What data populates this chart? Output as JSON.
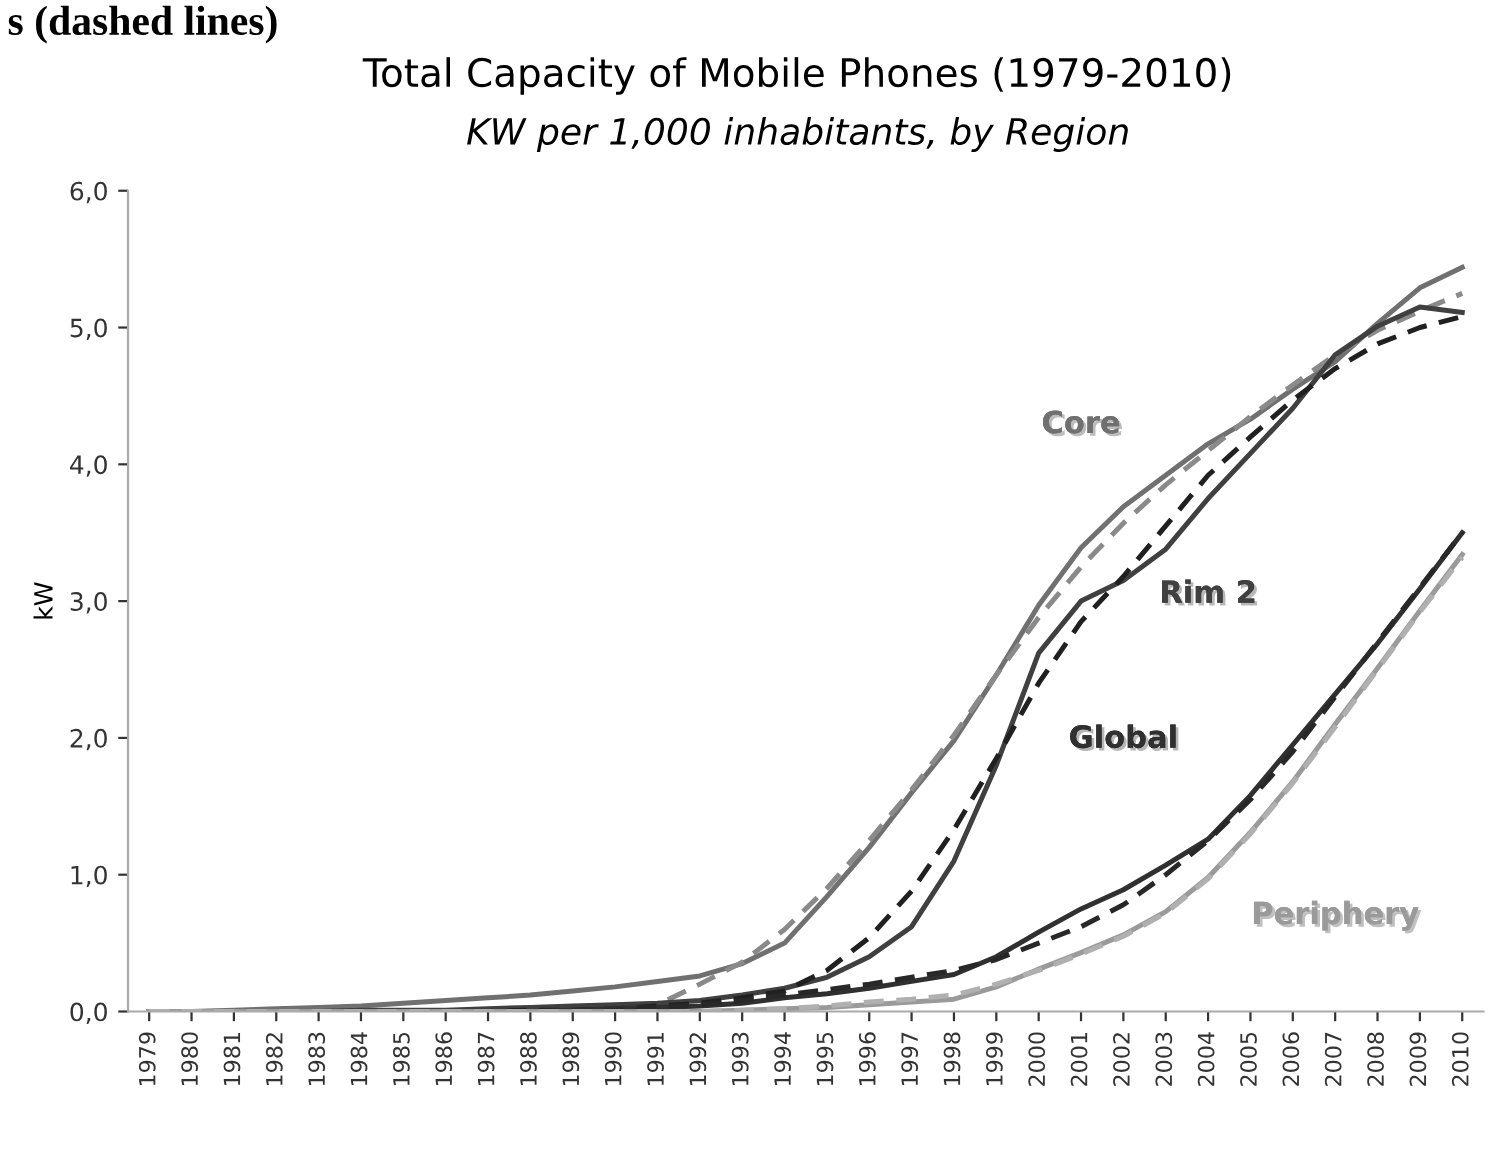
{
  "chart_data": {
    "type": "line",
    "title": "Total Capacity of Mobile Phones (1979-2010)",
    "subtitle": "KW per 1,000 inhabitants, by Region",
    "ylabel": "kW",
    "annotations": [
      "s (dashed lines)"
    ],
    "categories": [
      "1979",
      "1980",
      "1981",
      "1982",
      "1983",
      "1984",
      "1985",
      "1986",
      "1987",
      "1988",
      "1989",
      "1990",
      "1991",
      "1992",
      "1993",
      "1994",
      "1995",
      "1996",
      "1997",
      "1998",
      "1999",
      "2000",
      "2001",
      "2002",
      "2003",
      "2004",
      "2005",
      "2006",
      "2007",
      "2008",
      "2009",
      "2010"
    ],
    "ylim": [
      0,
      6
    ],
    "yticks": [
      {
        "value": 0,
        "label": "0,0"
      },
      {
        "value": 1,
        "label": "1,0"
      },
      {
        "value": 2,
        "label": "2,0"
      },
      {
        "value": 3,
        "label": "3,0"
      },
      {
        "value": 4,
        "label": "4,0"
      },
      {
        "value": 5,
        "label": "5,0"
      },
      {
        "value": 6,
        "label": "6,0"
      }
    ],
    "grid": false,
    "marker": "none",
    "series": [
      {
        "name": "Core",
        "color": "#707070",
        "line_style": "solid",
        "values": [
          0,
          0,
          0.01,
          0.02,
          0.03,
          0.04,
          0.06,
          0.08,
          0.1,
          0.12,
          0.15,
          0.18,
          0.22,
          0.26,
          0.35,
          0.5,
          0.84,
          1.2,
          1.6,
          1.98,
          2.46,
          2.97,
          3.39,
          3.69,
          3.92,
          4.15,
          4.33,
          4.55,
          4.75,
          5.03,
          5.29,
          5.44
        ]
      },
      {
        "color": "#8a8a8a",
        "line_style": "dashed",
        "values": [
          0,
          0,
          0,
          0,
          0,
          0,
          0,
          0,
          0,
          0,
          0.01,
          0.02,
          0.05,
          0.2,
          0.36,
          0.6,
          0.9,
          1.25,
          1.62,
          2.02,
          2.46,
          2.88,
          3.25,
          3.57,
          3.85,
          4.1,
          4.35,
          4.58,
          4.8,
          4.98,
          5.12,
          5.25
        ]
      },
      {
        "name": "Rim 2",
        "color": "#404040",
        "line_style": "solid",
        "values": [
          0,
          0,
          0,
          0,
          0,
          0.01,
          0.01,
          0.01,
          0.02,
          0.03,
          0.04,
          0.05,
          0.06,
          0.08,
          0.12,
          0.17,
          0.25,
          0.4,
          0.62,
          1.1,
          1.8,
          2.62,
          3.0,
          3.15,
          3.38,
          3.75,
          4.08,
          4.41,
          4.8,
          5.01,
          5.15,
          5.11
        ]
      },
      {
        "color": "#202020",
        "line_style": "dashed",
        "values": [
          0,
          0,
          0,
          0,
          0,
          0,
          0,
          0,
          0,
          0.01,
          0.01,
          0.02,
          0.04,
          0.06,
          0.1,
          0.15,
          0.3,
          0.54,
          0.88,
          1.33,
          1.85,
          2.4,
          2.85,
          3.18,
          3.55,
          3.92,
          4.2,
          4.47,
          4.7,
          4.88,
          5.0,
          5.08
        ]
      },
      {
        "name": "Global",
        "color": "#303030",
        "line_style": "solid",
        "values": [
          0,
          0,
          0,
          0,
          0,
          0,
          0,
          0,
          0,
          0,
          0.01,
          0.02,
          0.03,
          0.04,
          0.06,
          0.1,
          0.13,
          0.17,
          0.22,
          0.27,
          0.4,
          0.58,
          0.75,
          0.89,
          1.07,
          1.26,
          1.58,
          1.95,
          2.32,
          2.69,
          3.09,
          3.5
        ]
      },
      {
        "color": "#282828",
        "line_style": "dashed",
        "values": [
          0,
          0,
          0,
          0,
          0,
          0,
          0,
          0,
          0,
          0,
          0,
          0.01,
          0.03,
          0.05,
          0.08,
          0.12,
          0.16,
          0.2,
          0.25,
          0.3,
          0.38,
          0.5,
          0.62,
          0.78,
          1.0,
          1.25,
          1.55,
          1.9,
          2.3,
          2.7,
          3.1,
          3.5
        ]
      },
      {
        "name": "Periphery",
        "color": "#9a9a9a",
        "line_style": "solid",
        "values": [
          0,
          0,
          0,
          0,
          0,
          0,
          0,
          0,
          0,
          0,
          0,
          0,
          0,
          0,
          0.01,
          0.02,
          0.03,
          0.05,
          0.07,
          0.09,
          0.18,
          0.31,
          0.43,
          0.56,
          0.73,
          0.98,
          1.31,
          1.68,
          2.1,
          2.51,
          2.93,
          3.34
        ]
      },
      {
        "color": "#b0b0b0",
        "line_style": "dashed",
        "values": [
          0,
          0,
          0,
          0,
          0,
          0,
          0,
          0,
          0,
          0,
          0,
          0,
          0,
          0,
          0.01,
          0.02,
          0.04,
          0.07,
          0.09,
          0.12,
          0.2,
          0.3,
          0.42,
          0.55,
          0.72,
          0.97,
          1.3,
          1.67,
          2.08,
          2.5,
          2.92,
          3.32
        ]
      }
    ]
  }
}
